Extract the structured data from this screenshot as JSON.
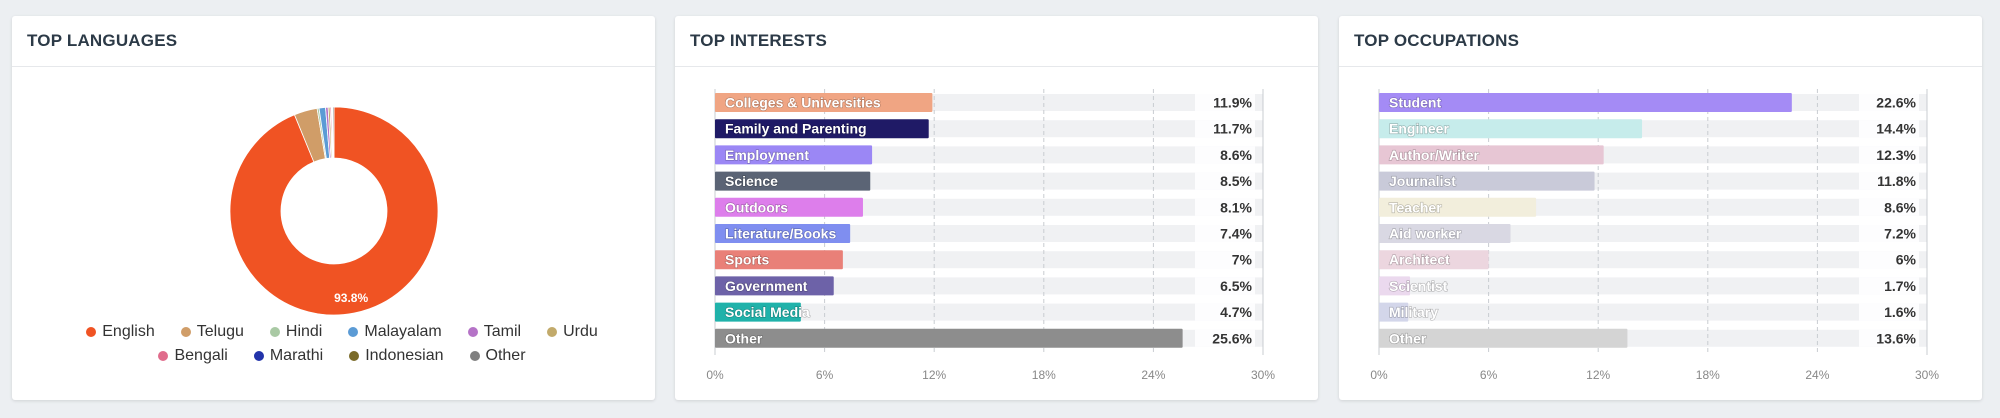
{
  "panels": {
    "languages": {
      "title": "TOP LANGUAGES"
    },
    "interests": {
      "title": "TOP INTERESTS"
    },
    "occupations": {
      "title": "TOP OCCUPATIONS"
    }
  },
  "chart_data": [
    {
      "type": "pie",
      "title": "TOP LANGUAGES",
      "donut": true,
      "slices": [
        {
          "label": "English",
          "value": 93.8,
          "color": "#f05323",
          "show_label": "93.8%"
        },
        {
          "label": "Telugu",
          "value": 3.6,
          "color": "#d09d68"
        },
        {
          "label": "Hindi",
          "value": 0.3,
          "color": "#a9c9a4"
        },
        {
          "label": "Malayalam",
          "value": 1.0,
          "color": "#5b9bd5"
        },
        {
          "label": "Tamil",
          "value": 0.4,
          "color": "#b573c7"
        },
        {
          "label": "Urdu",
          "value": 0.3,
          "color": "#c2aa6b"
        },
        {
          "label": "Bengali",
          "value": 0.2,
          "color": "#e06c8c"
        },
        {
          "label": "Marathi",
          "value": 0.1,
          "color": "#2233aa"
        },
        {
          "label": "Indonesian",
          "value": 0.1,
          "color": "#7a6a28"
        },
        {
          "label": "Other",
          "value": 0.2,
          "color": "#808080"
        }
      ],
      "legend_rows": [
        [
          "English",
          "Telugu",
          "Hindi",
          "Malayalam",
          "Tamil",
          "Urdu"
        ],
        [
          "Bengali",
          "Marathi",
          "Indonesian",
          "Other"
        ]
      ]
    },
    {
      "type": "bar",
      "orientation": "horizontal",
      "title": "TOP INTERESTS",
      "xlim": [
        0,
        30
      ],
      "xticks": [
        "0%",
        "6%",
        "12%",
        "18%",
        "24%",
        "30%"
      ],
      "categories": [
        "Colleges & Universities",
        "Family and Parenting",
        "Employment",
        "Science",
        "Outdoors",
        "Literature/Books",
        "Sports",
        "Government",
        "Social Media",
        "Other"
      ],
      "values": [
        11.9,
        11.7,
        8.6,
        8.5,
        8.1,
        7.4,
        7,
        6.5,
        4.7,
        25.6
      ],
      "value_labels": [
        "11.9%",
        "11.7%",
        "8.6%",
        "8.5%",
        "8.1%",
        "7.4%",
        "7%",
        "6.5%",
        "4.7%",
        "25.6%"
      ],
      "colors": [
        "#f0a583",
        "#1f1a66",
        "#9b87f5",
        "#5b6475",
        "#dd7eeb",
        "#7f8ef0",
        "#e98078",
        "#6d62a8",
        "#20b2aa",
        "#8d8d8d"
      ]
    },
    {
      "type": "bar",
      "orientation": "horizontal",
      "title": "TOP OCCUPATIONS",
      "xlim": [
        0,
        30
      ],
      "xticks": [
        "0%",
        "6%",
        "12%",
        "18%",
        "24%",
        "30%"
      ],
      "categories": [
        "Student",
        "Engineer",
        "Author/Writer",
        "Journalist",
        "Teacher",
        "Aid worker",
        "Architect",
        "Scientist",
        "Military",
        "Other"
      ],
      "values": [
        22.6,
        14.4,
        12.3,
        11.8,
        8.6,
        7.2,
        6,
        1.7,
        1.6,
        13.6
      ],
      "value_labels": [
        "22.6%",
        "14.4%",
        "12.3%",
        "11.8%",
        "8.6%",
        "7.2%",
        "6%",
        "1.7%",
        "1.6%",
        "13.6%"
      ],
      "colors": [
        "#a48bf5",
        "#c6eceb",
        "#e7c6d4",
        "#c9cad9",
        "#f2eedc",
        "#d9d8e3",
        "#ecd6df",
        "#ebd9ee",
        "#d3d6ea",
        "#d4d4d4"
      ]
    }
  ]
}
